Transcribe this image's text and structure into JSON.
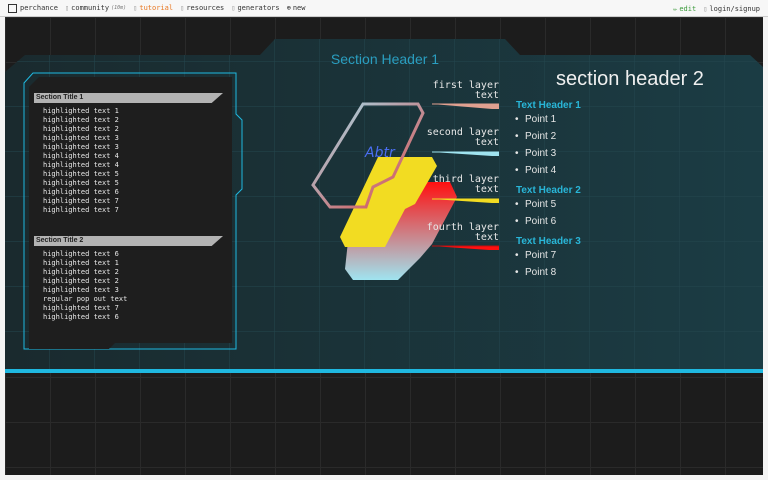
{
  "nav": {
    "logo": "perchance",
    "items": [
      {
        "label": "community",
        "badge": "(10m)"
      },
      {
        "label": "tutorial",
        "color": "#e87722"
      },
      {
        "label": "resources"
      },
      {
        "label": "generators"
      },
      {
        "label": "new",
        "icon": "plus-circle-icon"
      }
    ],
    "right": [
      {
        "label": "edit",
        "color": "#3a9a3a"
      },
      {
        "label": "login/signup"
      }
    ]
  },
  "colors": {
    "accent": "#29b6d8",
    "panel": "#183238",
    "bar": "#1fb8e0"
  },
  "main": {
    "section_header_1": "Section Header 1",
    "section_header_2": "section header 2",
    "left": {
      "sections": [
        {
          "title": "Section Title 1",
          "lines": [
            "highlighted text 1",
            "highlighted text 2",
            "highlighted text 2",
            "highlighted text 3",
            "highlighted text 3",
            "highlighted text 4",
            "highlighted text 4",
            "highlighted text 5",
            "highlighted text 5",
            "highlighted text 6",
            "highlighted text 7",
            "highlighted text 7"
          ]
        },
        {
          "title": "Section Title 2",
          "lines": [
            "highlighted text 6",
            "highlighted text 1",
            "highlighted text 2",
            "highlighted text 2",
            "highlighted text 3",
            "regular pop out text",
            "highlighted text 7",
            "highlighted text 6"
          ]
        }
      ]
    },
    "graphic_label": "Abtr",
    "layers": [
      {
        "l1": "first layer",
        "l2": "text",
        "color": "#e0a090"
      },
      {
        "l1": "second layer",
        "l2": "text",
        "color": "#a0e4f0"
      },
      {
        "l1": "third layer",
        "l2": "text",
        "color": "#f2dc22"
      },
      {
        "l1": "fourth layer",
        "l2": "text",
        "color": "#ff1010"
      }
    ],
    "right": {
      "groups": [
        {
          "header": "Text Header 1",
          "points": [
            "Point 1",
            "Point 2",
            "Point 3",
            "Point 4"
          ]
        },
        {
          "header": "Text Header 2",
          "points": [
            "Point 5",
            "Point 6"
          ]
        },
        {
          "header": "Text Header 3",
          "points": [
            "Point 7",
            "Point 8"
          ]
        }
      ]
    }
  }
}
